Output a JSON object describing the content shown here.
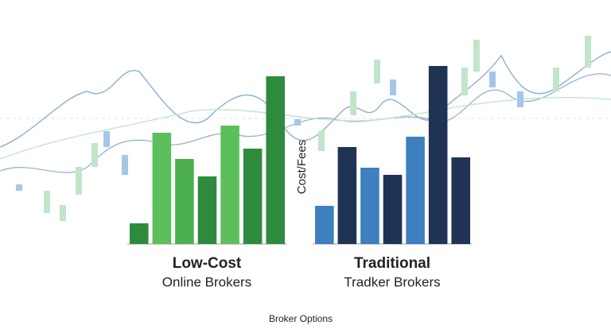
{
  "chart_data": {
    "type": "bar",
    "y_label": "Cost/Fees",
    "x_label": "Broker Options",
    "ylim": [
      0,
      230
    ],
    "groups": [
      {
        "label": "Low-Cost",
        "sublabel": "Online Brokers",
        "values": [
          26,
          140,
          107,
          85,
          149,
          120,
          211
        ],
        "colors": [
          "#2e8b3e",
          "#5cbf5c",
          "#4caf50",
          "#2e8b3e",
          "#5cbf5c",
          "#2e8b3e",
          "#2e8b3e"
        ]
      },
      {
        "label": "Traditional",
        "sublabel": "Tradker Brokers",
        "values": [
          48,
          122,
          96,
          87,
          135,
          224,
          109
        ],
        "colors": [
          "#3d7fbf",
          "#1f3354",
          "#3d7fbf",
          "#1f3354",
          "#3d7fbf",
          "#1f3354",
          "#1f3354"
        ]
      }
    ]
  }
}
